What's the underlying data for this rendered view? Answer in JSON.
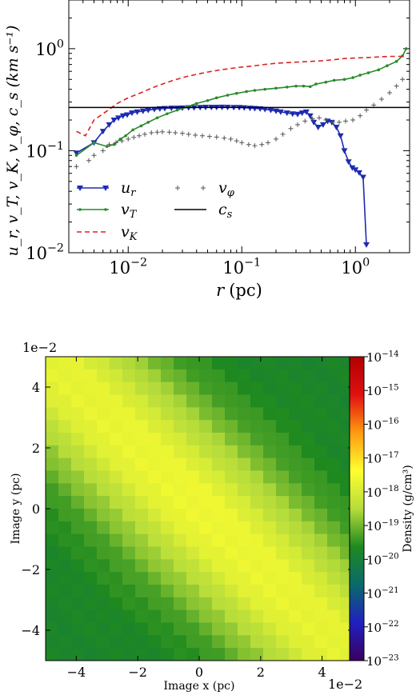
{
  "chart_data": [
    {
      "type": "line",
      "xscale": "log",
      "yscale": "log",
      "xlim": [
        0.003,
        3
      ],
      "ylim": [
        0.01,
        3
      ],
      "xlabel_var": "r",
      "xlabel_unit": "(pc)",
      "ylabel": "u_r, v_T, v_K, v_φ, c_s (km s⁻¹)",
      "x_ticks": [
        {
          "value": 0.01,
          "base": "10",
          "exp": "−2"
        },
        {
          "value": 0.1,
          "base": "10",
          "exp": "−1"
        },
        {
          "value": 1,
          "base": "10",
          "exp": "0"
        }
      ],
      "y_ticks": [
        {
          "value": 0.01,
          "base": "10",
          "exp": "−2"
        },
        {
          "value": 0.1,
          "base": "10",
          "exp": "−1"
        },
        {
          "value": 1,
          "base": "10",
          "exp": "0"
        }
      ],
      "legend_position": "lower-left",
      "series": [
        {
          "name": "u_r",
          "label_main": "u",
          "label_sub": "r",
          "color": "#1f2bb0",
          "style": "solid",
          "marker": "triangle-down",
          "x": [
            0.0035,
            0.005,
            0.006,
            0.0068,
            0.0075,
            0.0082,
            0.009,
            0.0098,
            0.0108,
            0.012,
            0.0135,
            0.015,
            0.017,
            0.019,
            0.021,
            0.024,
            0.027,
            0.03,
            0.034,
            0.038,
            0.043,
            0.048,
            0.054,
            0.06,
            0.067,
            0.075,
            0.085,
            0.095,
            0.105,
            0.118,
            0.13,
            0.145,
            0.16,
            0.18,
            0.2,
            0.22,
            0.25,
            0.28,
            0.31,
            0.34,
            0.37,
            0.4,
            0.43,
            0.47,
            0.52,
            0.57,
            0.62,
            0.68,
            0.74,
            0.8,
            0.87,
            0.94,
            1.0,
            1.08,
            1.17,
            1.25
          ],
          "y": [
            0.095,
            0.12,
            0.155,
            0.18,
            0.2,
            0.21,
            0.22,
            0.225,
            0.235,
            0.24,
            0.245,
            0.25,
            0.255,
            0.258,
            0.26,
            0.262,
            0.262,
            0.263,
            0.265,
            0.265,
            0.266,
            0.267,
            0.267,
            0.267,
            0.268,
            0.267,
            0.266,
            0.266,
            0.264,
            0.262,
            0.26,
            0.258,
            0.255,
            0.25,
            0.245,
            0.24,
            0.235,
            0.23,
            0.228,
            0.235,
            0.24,
            0.22,
            0.19,
            0.17,
            0.18,
            0.195,
            0.19,
            0.17,
            0.14,
            0.1,
            0.078,
            0.068,
            0.065,
            0.061,
            0.055,
            0.012
          ]
        },
        {
          "name": "v_T",
          "label_main": "v",
          "label_sub": "T",
          "color": "#2a8a2a",
          "style": "solid",
          "marker": "point",
          "x": [
            0.0035,
            0.005,
            0.0065,
            0.0075,
            0.0085,
            0.0095,
            0.011,
            0.013,
            0.015,
            0.018,
            0.022,
            0.027,
            0.033,
            0.04,
            0.05,
            0.06,
            0.075,
            0.09,
            0.11,
            0.13,
            0.16,
            0.2,
            0.25,
            0.3,
            0.35,
            0.4,
            0.45,
            0.55,
            0.65,
            0.8,
            0.95,
            1.1,
            1.3,
            1.6,
            1.9,
            2.3,
            2.6,
            2.8
          ],
          "y": [
            0.09,
            0.12,
            0.11,
            0.115,
            0.13,
            0.14,
            0.16,
            0.175,
            0.19,
            0.21,
            0.23,
            0.25,
            0.27,
            0.29,
            0.31,
            0.33,
            0.35,
            0.365,
            0.38,
            0.39,
            0.4,
            0.41,
            0.42,
            0.43,
            0.43,
            0.425,
            0.45,
            0.47,
            0.49,
            0.5,
            0.52,
            0.55,
            0.58,
            0.62,
            0.68,
            0.75,
            0.85,
            1.0
          ]
        },
        {
          "name": "v_K",
          "label_main": "v",
          "label_sub": "K",
          "color": "#dd2222",
          "style": "dashed",
          "marker": "none",
          "x": [
            0.0035,
            0.0042,
            0.005,
            0.006,
            0.007,
            0.008,
            0.01,
            0.013,
            0.016,
            0.02,
            0.025,
            0.032,
            0.04,
            0.05,
            0.065,
            0.08,
            0.1,
            0.13,
            0.16,
            0.2,
            0.25,
            0.32,
            0.4,
            0.5,
            0.65,
            0.8,
            1.0,
            1.3,
            1.6,
            2.0,
            2.5,
            2.8
          ],
          "y": [
            0.155,
            0.14,
            0.2,
            0.23,
            0.26,
            0.29,
            0.33,
            0.37,
            0.41,
            0.45,
            0.49,
            0.53,
            0.56,
            0.59,
            0.62,
            0.64,
            0.66,
            0.68,
            0.7,
            0.72,
            0.73,
            0.74,
            0.75,
            0.76,
            0.78,
            0.8,
            0.81,
            0.82,
            0.83,
            0.84,
            0.84,
            0.85
          ]
        },
        {
          "name": "v_φ",
          "label_main": "v",
          "label_sub": "φ",
          "color": "#555555",
          "style": "none",
          "marker": "plus",
          "x": [
            0.0035,
            0.0045,
            0.005,
            0.006,
            0.0068,
            0.0078,
            0.0088,
            0.01,
            0.0112,
            0.0125,
            0.014,
            0.016,
            0.018,
            0.02,
            0.023,
            0.026,
            0.03,
            0.034,
            0.039,
            0.045,
            0.052,
            0.06,
            0.07,
            0.08,
            0.09,
            0.1,
            0.115,
            0.13,
            0.15,
            0.17,
            0.2,
            0.23,
            0.27,
            0.31,
            0.36,
            0.42,
            0.48,
            0.55,
            0.63,
            0.72,
            0.82,
            0.95,
            1.1,
            1.25,
            1.45,
            1.7,
            2.0,
            2.3,
            2.6
          ],
          "y": [
            0.07,
            0.08,
            0.09,
            0.1,
            0.115,
            0.12,
            0.125,
            0.13,
            0.135,
            0.14,
            0.145,
            0.15,
            0.152,
            0.153,
            0.152,
            0.15,
            0.148,
            0.145,
            0.142,
            0.14,
            0.138,
            0.136,
            0.133,
            0.13,
            0.125,
            0.12,
            0.115,
            0.112,
            0.115,
            0.12,
            0.13,
            0.145,
            0.165,
            0.18,
            0.195,
            0.205,
            0.21,
            0.2,
            0.19,
            0.19,
            0.195,
            0.2,
            0.22,
            0.25,
            0.28,
            0.32,
            0.37,
            0.43,
            0.5
          ]
        },
        {
          "name": "c_s",
          "label_main": "c",
          "label_sub": "s",
          "color": "#000000",
          "style": "solid",
          "marker": "none",
          "x": [
            0.003,
            3
          ],
          "y": [
            0.265,
            0.265
          ]
        }
      ]
    },
    {
      "type": "heatmap",
      "xlabel": "Image x  (pc)",
      "ylabel": "Image y  (pc)",
      "x_offset_label": "1e−2",
      "y_offset_label": "1e−2",
      "xlim": [
        -5,
        5
      ],
      "ylim": [
        -5,
        5
      ],
      "x_ticks": [
        "−4",
        "−2",
        "0",
        "2",
        "4"
      ],
      "y_ticks": [
        "4",
        "2",
        "0",
        "−2",
        "−4"
      ],
      "x_tick_values": [
        -4,
        -2,
        0,
        2,
        4
      ],
      "y_tick_values": [
        4,
        2,
        0,
        -2,
        -4
      ],
      "colorbar_label": "Density  (g/cm³)",
      "colorbar_scale": "log",
      "colorbar_range_exp": [
        -23,
        -14
      ],
      "colorbar_ticks": [
        {
          "base": "10",
          "exp": "−14"
        },
        {
          "base": "10",
          "exp": "−15"
        },
        {
          "base": "10",
          "exp": "−16"
        },
        {
          "base": "10",
          "exp": "−17"
        },
        {
          "base": "10",
          "exp": "−18"
        },
        {
          "base": "10",
          "exp": "−19"
        },
        {
          "base": "10",
          "exp": "−20"
        },
        {
          "base": "10",
          "exp": "−21"
        },
        {
          "base": "10",
          "exp": "−22"
        },
        {
          "base": "10",
          "exp": "−23"
        }
      ],
      "colormap_stops": [
        "#3a005e",
        "#2020c0",
        "#0a6a6a",
        "#1f8a1f",
        "#b6dc3a",
        "#ffff30",
        "#ff9a10",
        "#e01010",
        "#b00000"
      ],
      "grid_cells": 24,
      "field_description_log_density": {
        "peak_exp": -17.6,
        "background_exp": -19.8,
        "band_orientation": "upper-left to lower-right"
      }
    }
  ]
}
